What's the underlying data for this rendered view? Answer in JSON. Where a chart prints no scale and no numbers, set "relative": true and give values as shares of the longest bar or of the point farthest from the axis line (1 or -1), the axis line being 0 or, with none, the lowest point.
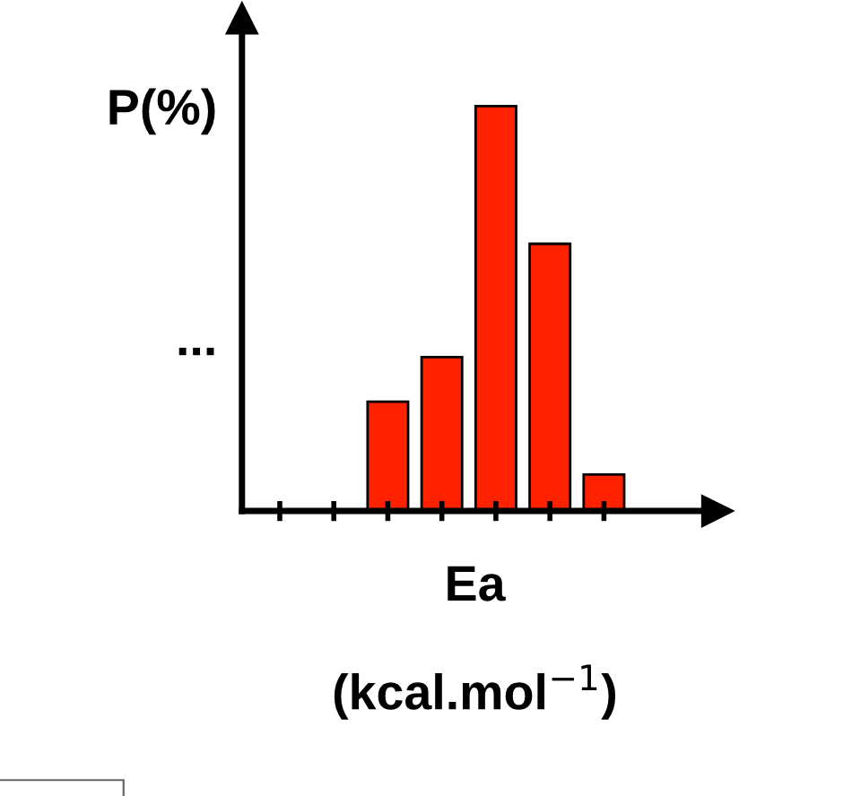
{
  "chart_data": {
    "type": "bar",
    "relative": true,
    "categories": [
      null,
      null,
      null,
      null,
      null
    ],
    "values": [
      0.27,
      0.38,
      1,
      0.66,
      0.09
    ],
    "color": "#ff2200",
    "ylabel": "P(%)",
    "xlabel": "Ea\n(kcal.mol$^{−1}$)",
    "annotations": [
      "..."
    ],
    "grid": false,
    "legend": false
  }
}
